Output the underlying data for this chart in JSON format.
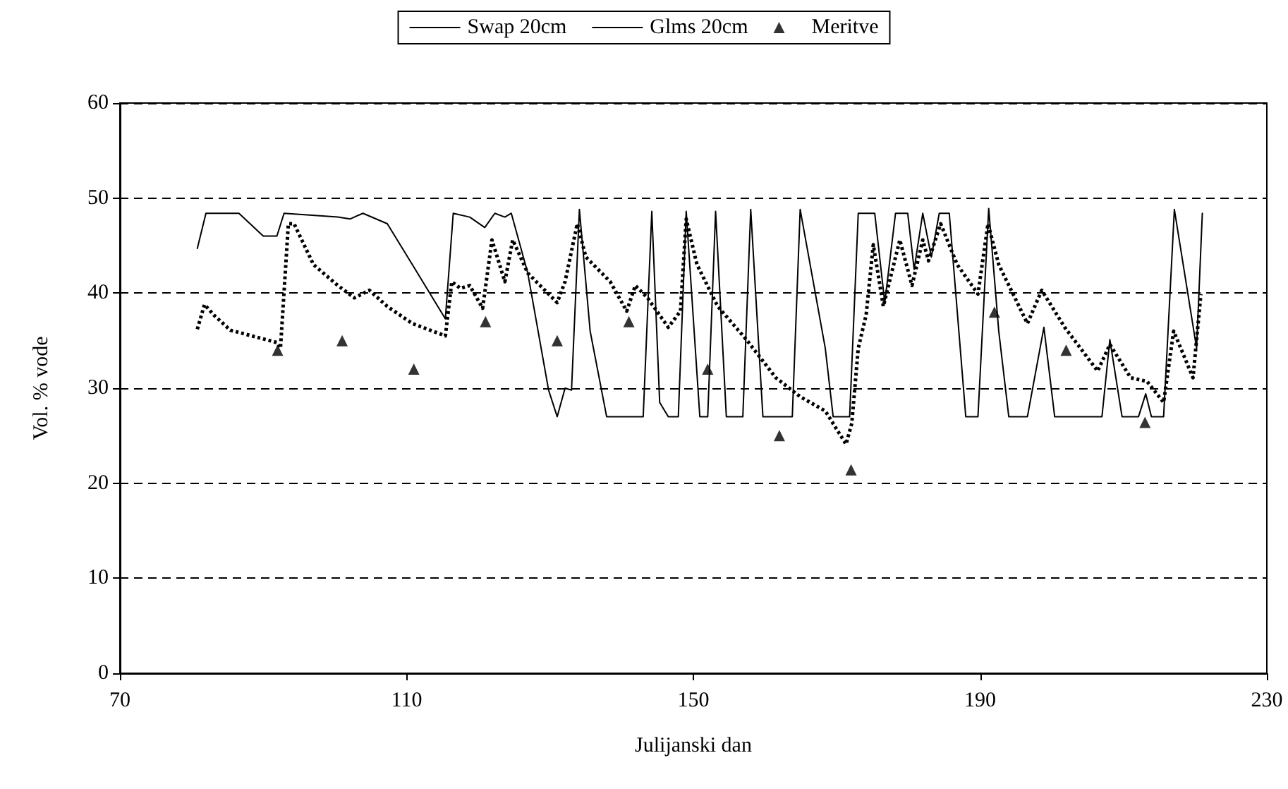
{
  "chart_data": {
    "type": "line",
    "xlabel": "Julijanski dan",
    "ylabel": "Vol. % vode",
    "xlim": [
      70,
      230
    ],
    "xticks": [
      70,
      110,
      150,
      190,
      230
    ],
    "ylim": [
      0,
      60
    ],
    "yticks": [
      0,
      10,
      20,
      30,
      40,
      50,
      60
    ],
    "grid": "y",
    "legend": "top",
    "series": [
      {
        "name": "Swap 20cm",
        "type": "line",
        "color": "#000000",
        "line_style": "dotted",
        "marker": "none",
        "x": [
          80.8,
          81.8,
          83.1,
          85.4,
          91.9,
          92.4,
          93.5,
          94.3,
          97,
          100.4,
          102.7,
          104.8,
          107.3,
          110.8,
          115.4,
          116.3,
          117.5,
          118.8,
          120.6,
          121.9,
          122.8,
          123.7,
          124.8,
          126.9,
          131,
          132.1,
          133.8,
          135,
          138.4,
          140.7,
          141.9,
          143.6,
          146.5,
          148.2,
          149,
          150.5,
          153.4,
          157.4,
          161.5,
          164.9,
          168.4,
          171.3,
          172.1,
          173,
          174.1,
          175.1,
          176.5,
          178.8,
          180.5,
          182,
          182.8,
          184.5,
          186.8,
          189.7,
          191.1,
          192.6,
          196.6,
          198.6,
          201.8,
          206.4,
          208.1,
          211,
          213.3,
          215.6,
          217,
          219.7,
          220.8
        ],
        "values": [
          36.2,
          38.8,
          37.7,
          36.1,
          34.8,
          34.2,
          47.3,
          47.3,
          43,
          40.8,
          39.5,
          40.3,
          38.6,
          36.8,
          35.5,
          41.2,
          40.5,
          40.8,
          38.4,
          45.6,
          43.4,
          41.2,
          45.6,
          42.1,
          39,
          41.2,
          47.3,
          43.8,
          41.2,
          38.1,
          40.8,
          39.5,
          36.4,
          38.1,
          47.8,
          43,
          38.6,
          35.1,
          31.1,
          29.1,
          27.6,
          24.1,
          26.3,
          34.2,
          37.7,
          45.1,
          38.6,
          45.6,
          40.8,
          45.6,
          43.4,
          47.3,
          43,
          39.9,
          47.3,
          43,
          36.8,
          40.3,
          36.4,
          31.8,
          34.6,
          31.1,
          30.7,
          28.5,
          36,
          31.1,
          39.9
        ]
      },
      {
        "name": "Glms 20cm",
        "type": "line",
        "color": "#000000",
        "line_style": "solid",
        "marker": "none",
        "x": [
          80.8,
          82,
          86.6,
          90,
          91.9,
          92.9,
          100.4,
          102.1,
          103.9,
          107.3,
          110.8,
          115.4,
          116.5,
          118.8,
          120.9,
          122.3,
          123.7,
          124.6,
          126.9,
          129.8,
          131,
          132.1,
          133,
          134.1,
          135.6,
          137.9,
          143,
          144.2,
          145.3,
          146.5,
          147.9,
          149,
          150.9,
          152,
          153.1,
          154.6,
          156.9,
          158,
          159.7,
          163.8,
          164.9,
          168.4,
          169.5,
          171.8,
          173,
          175.3,
          176.7,
          178.2,
          179.9,
          180.8,
          182,
          183.2,
          184.3,
          185.7,
          188,
          189.7,
          191.2,
          192.6,
          194,
          196.6,
          198.9,
          200.4,
          207,
          208.1,
          209.8,
          212.1,
          213.1,
          213.9,
          215.6,
          217.1,
          220.2,
          221
        ],
        "values": [
          44.7,
          48.4,
          48.4,
          46,
          46,
          48.4,
          48,
          47.8,
          48.4,
          47.3,
          43,
          37.3,
          48.4,
          48,
          46.9,
          48.4,
          48,
          48.4,
          42.1,
          29.8,
          27,
          30,
          29.8,
          48.8,
          36,
          27,
          27,
          48.6,
          28.5,
          27,
          27,
          48.6,
          27,
          27,
          48.6,
          27,
          27,
          48.8,
          27,
          27,
          48.8,
          34.2,
          27,
          27,
          48.4,
          48.4,
          39,
          48.4,
          48.4,
          42.5,
          48.4,
          43.8,
          48.4,
          48.4,
          27,
          27,
          48.9,
          36,
          27,
          27,
          36.4,
          27,
          27,
          35.1,
          27,
          27,
          29.4,
          27,
          27,
          48.8,
          34.2,
          48.4
        ]
      },
      {
        "name": "Meritve",
        "type": "scatter",
        "color": "#000000",
        "marker": "triangle",
        "x": [
          92,
          101,
          111,
          121,
          131,
          141,
          152,
          162,
          172,
          192,
          202,
          213
        ],
        "values": [
          34,
          35,
          32,
          37,
          35,
          37,
          32,
          25,
          21.4,
          38,
          34,
          26.4
        ]
      }
    ]
  }
}
